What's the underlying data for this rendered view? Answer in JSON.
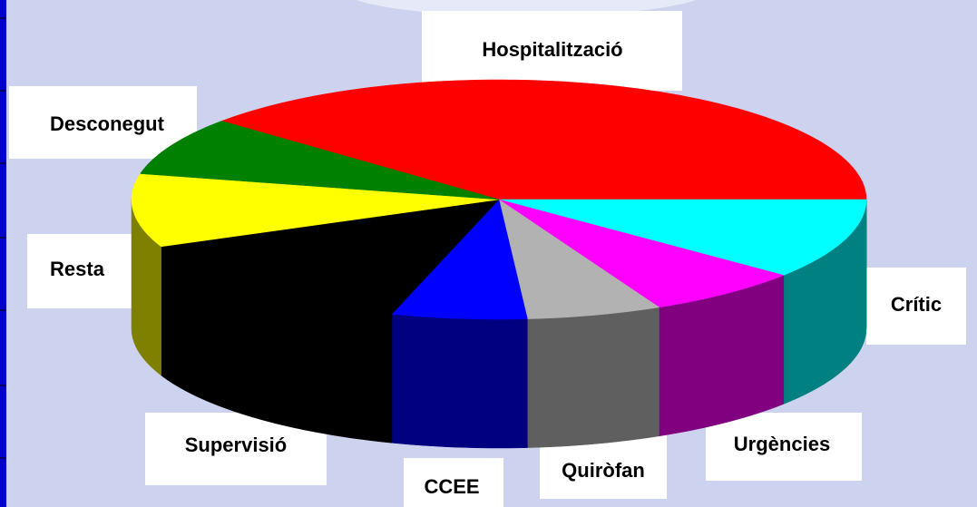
{
  "chart_data": {
    "type": "pie3d",
    "categories": [
      "Hospitalització",
      "Crític",
      "Urgències",
      "Quiròfan",
      "CCEE",
      "Supervisió",
      "Resta",
      "Desconegut"
    ],
    "values": [
      39,
      11,
      7,
      6,
      6,
      14,
      10,
      8
    ],
    "colors": [
      "#ff0000",
      "#00ffff",
      "#ff00ff",
      "#b2b2b2",
      "#0000ff",
      "#000000",
      "#ffff00",
      "#008000"
    ],
    "side_colors": [
      "#800000",
      "#008080",
      "#800080",
      "#5f5f5f",
      "#000080",
      "#000000",
      "#808000",
      "#004000"
    ]
  }
}
